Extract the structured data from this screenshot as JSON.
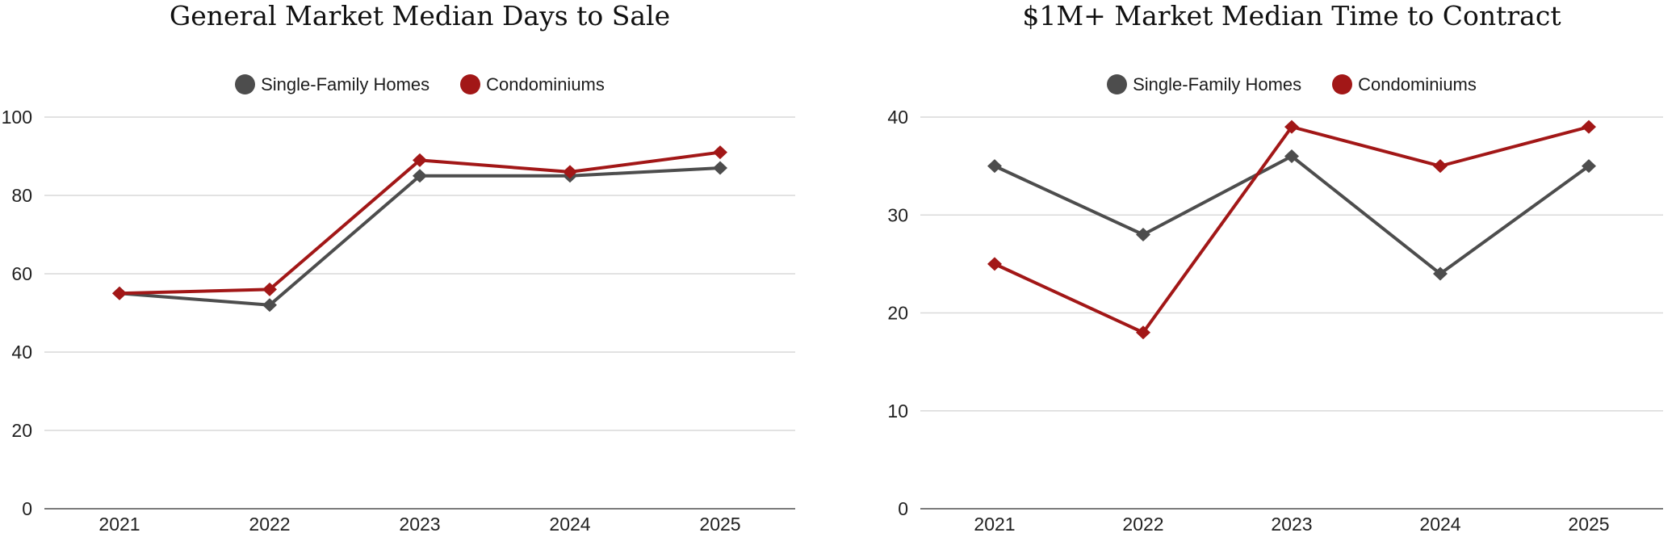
{
  "colors": {
    "background": "#FFFFFF",
    "grid": "#D9D9D9",
    "axis_line": "#7A7A7A",
    "tick_text": "#212121",
    "title_text": "#101010",
    "single_family": "#4D4D4D",
    "condominiums": "#A21717"
  },
  "chart_data": [
    {
      "type": "line",
      "title": "General Market Median Days to Sale",
      "categories": [
        "2021",
        "2022",
        "2023",
        "2024",
        "2025"
      ],
      "series": [
        {
          "name": "Single-Family Homes",
          "color": "#4D4D4D",
          "values": [
            55,
            52,
            85,
            85,
            87
          ]
        },
        {
          "name": "Condominiums",
          "color": "#A21717",
          "values": [
            55,
            56,
            89,
            86,
            91
          ]
        }
      ],
      "xlabel": "",
      "ylabel": "",
      "ylim": [
        0,
        100
      ],
      "yticks": [
        0,
        20,
        40,
        60,
        80,
        100
      ],
      "grid": true,
      "legend_position": "top",
      "marker": "diamond"
    },
    {
      "type": "line",
      "title": "$1M+ Market Median Time to Contract",
      "categories": [
        "2021",
        "2022",
        "2023",
        "2024",
        "2025"
      ],
      "series": [
        {
          "name": "Single-Family Homes",
          "color": "#4D4D4D",
          "values": [
            35,
            28,
            36,
            24,
            35
          ]
        },
        {
          "name": "Condominiums",
          "color": "#A21717",
          "values": [
            25,
            18,
            39,
            35,
            39
          ]
        }
      ],
      "xlabel": "",
      "ylabel": "",
      "ylim": [
        0,
        40
      ],
      "yticks": [
        0,
        10,
        20,
        30,
        40
      ],
      "grid": true,
      "legend_position": "top",
      "marker": "diamond"
    }
  ]
}
